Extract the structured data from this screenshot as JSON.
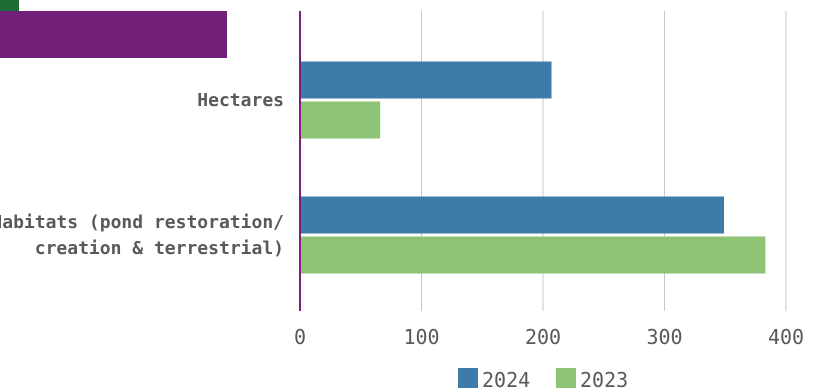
{
  "chart_data": {
    "type": "bar",
    "orientation": "horizontal",
    "categories": [
      [
        "Hectares"
      ],
      [
        "Habitats (pond restoration/",
        "creation & terrestrial)"
      ]
    ],
    "series": [
      {
        "name": "2024",
        "color": "#3d7ca8",
        "values": [
          207,
          349
        ]
      },
      {
        "name": "2023",
        "color": "#8dc375",
        "values": [
          66,
          383
        ]
      }
    ],
    "xlim": [
      0,
      400
    ],
    "xticks": [
      "0",
      "100",
      "200",
      "300",
      "400"
    ],
    "grid": true,
    "legend": "bottom"
  },
  "colors": {
    "axis": "#7a1f7e",
    "grid": "#c8c8c8",
    "header_band": "#721f7a",
    "corner": "#1f6b35"
  }
}
